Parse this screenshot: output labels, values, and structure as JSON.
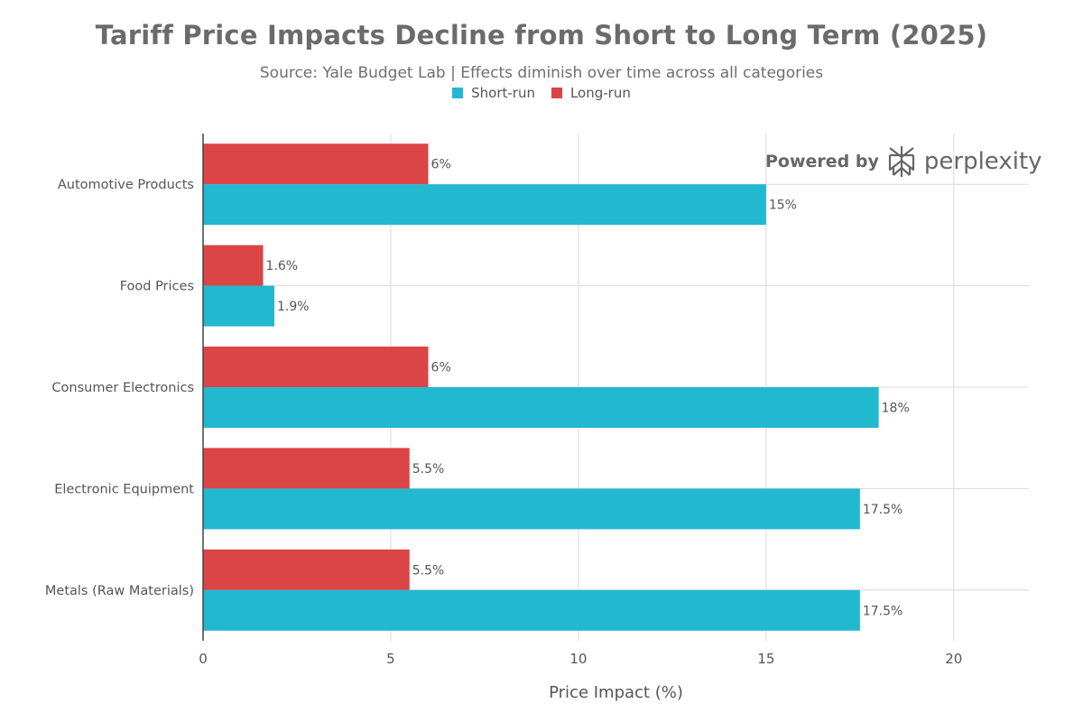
{
  "title": "Tariff Price Impacts Decline from Short to Long Term (2025)",
  "subtitle": "Source: Yale Budget Lab | Effects diminish over time across all categories",
  "watermark": {
    "powered": "Powered by",
    "brand": "perplexity",
    "icon": "perplexity-logo-icon"
  },
  "colors": {
    "short_run": "#22b8cf",
    "long_run": "#db4545",
    "grid": "#d9d9d9",
    "axis": "#444444"
  },
  "chart_data": {
    "type": "bar",
    "orientation": "horizontal",
    "categories": [
      "Automotive Products",
      "Food Prices",
      "Consumer Electronics",
      "Electronic Equipment",
      "Metals (Raw Materials)"
    ],
    "series": [
      {
        "name": "Short-run",
        "values": [
          15,
          1.9,
          18,
          17.5,
          17.5
        ],
        "labels": [
          "15%",
          "1.9%",
          "18%",
          "17.5%",
          "17.5%"
        ]
      },
      {
        "name": "Long-run",
        "values": [
          6,
          1.6,
          6,
          5.5,
          5.5
        ],
        "labels": [
          "6%",
          "1.6%",
          "6%",
          "5.5%",
          "5.5%"
        ]
      }
    ],
    "xlabel": "Price Impact (%)",
    "ylabel": "",
    "xlim": [
      0,
      22
    ],
    "xticks": [
      0,
      5,
      10,
      15,
      20
    ],
    "xtick_labels": [
      "0",
      "5",
      "10",
      "15",
      "20"
    ],
    "grid": true,
    "legend_position": "top-center"
  }
}
